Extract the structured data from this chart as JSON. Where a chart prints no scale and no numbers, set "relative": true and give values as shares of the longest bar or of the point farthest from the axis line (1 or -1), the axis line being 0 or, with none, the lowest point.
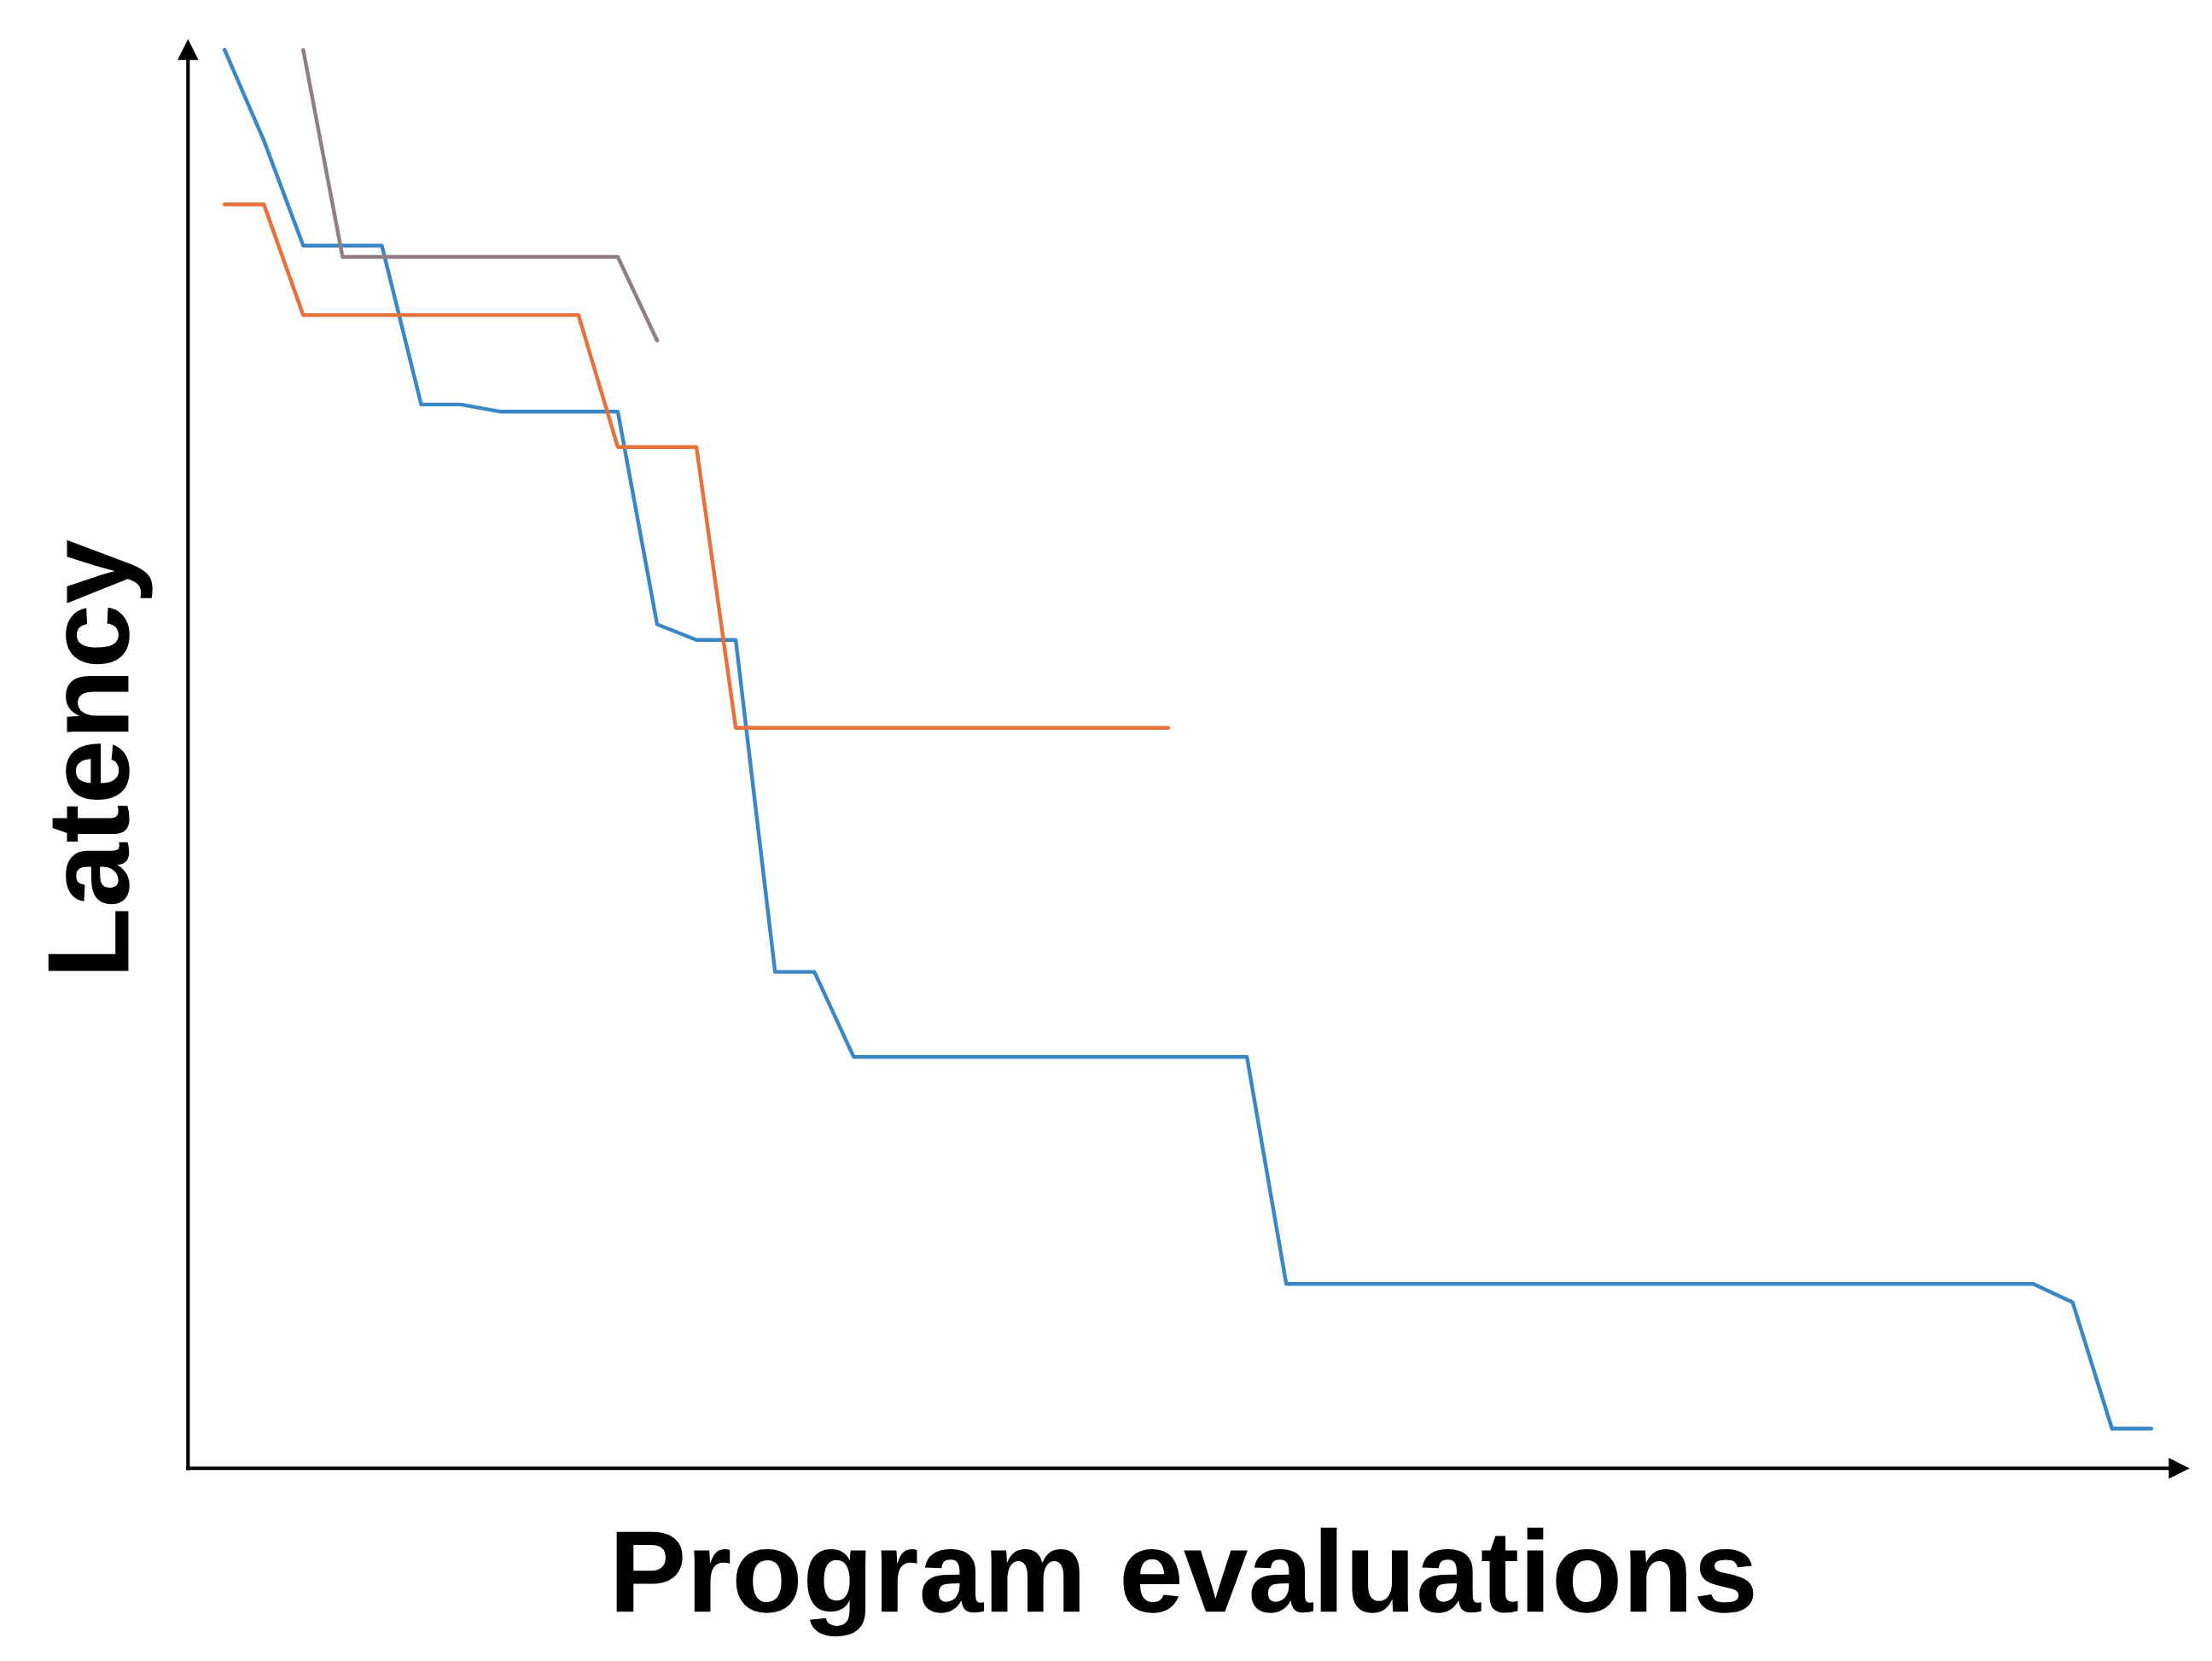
{
  "chart_data": {
    "type": "line",
    "relative": true,
    "xlabel": "Program evaluations",
    "ylabel": "Latency",
    "grid": false,
    "legend": false,
    "marker": "none",
    "line_style": "solid",
    "tick_labels": false,
    "categories": [
      null,
      null,
      null,
      null,
      null,
      null,
      null,
      null,
      null,
      null,
      null,
      null,
      null,
      null,
      null,
      null,
      null,
      null,
      null,
      null,
      null,
      null,
      null,
      null,
      null,
      null,
      null,
      null,
      null,
      null,
      null,
      null,
      null,
      null,
      null,
      null,
      null,
      null,
      null,
      null,
      null,
      null,
      null,
      null,
      null,
      null,
      null,
      null,
      null,
      null
    ],
    "series": [
      {
        "color": "#3a87c8",
        "values": [
          1.0,
          0.936,
          0.862,
          0.862,
          0.862,
          0.75,
          0.75,
          0.745,
          0.745,
          0.745,
          0.745,
          0.595,
          0.584,
          0.584,
          0.35,
          0.35,
          0.29,
          0.29,
          0.29,
          0.29,
          0.29,
          0.29,
          0.29,
          0.29,
          0.29,
          0.29,
          0.29,
          0.13,
          0.13,
          0.13,
          0.13,
          0.13,
          0.13,
          0.13,
          0.13,
          0.13,
          0.13,
          0.13,
          0.13,
          0.13,
          0.13,
          0.13,
          0.13,
          0.13,
          0.13,
          0.13,
          0.13,
          0.117,
          0.028,
          0.028
        ]
      },
      {
        "color": "#e8703a",
        "values": [
          0.891,
          0.891,
          0.813,
          0.813,
          0.813,
          0.813,
          0.813,
          0.813,
          0.813,
          0.813,
          0.72,
          0.72,
          0.72,
          0.522,
          0.522,
          0.522,
          0.522,
          0.522,
          0.522,
          0.522,
          0.522,
          0.522,
          0.522,
          0.522,
          0.522,
          null,
          null,
          null,
          null,
          null,
          null,
          null,
          null,
          null,
          null,
          null,
          null,
          null,
          null,
          null,
          null,
          null,
          null,
          null,
          null,
          null,
          null,
          null,
          null,
          null
        ]
      },
      {
        "color": "#8e7f84",
        "values": [
          null,
          null,
          1.0,
          0.854,
          0.854,
          0.854,
          0.854,
          0.854,
          0.854,
          0.854,
          0.854,
          0.795,
          null,
          null,
          null,
          null,
          null,
          null,
          null,
          null,
          null,
          null,
          null,
          null,
          null,
          null,
          null,
          null,
          null,
          null,
          null,
          null,
          null,
          null,
          null,
          null,
          null,
          null,
          null,
          null,
          null,
          null,
          null,
          null,
          null,
          null,
          null,
          null,
          null,
          null
        ]
      }
    ]
  }
}
